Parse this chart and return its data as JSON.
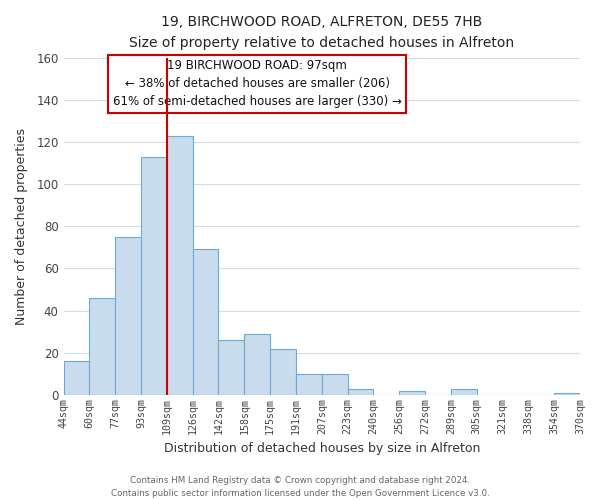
{
  "title": "19, BIRCHWOOD ROAD, ALFRETON, DE55 7HB",
  "subtitle": "Size of property relative to detached houses in Alfreton",
  "xlabel": "Distribution of detached houses by size in Alfreton",
  "ylabel": "Number of detached properties",
  "bar_color": "#c8dcee",
  "bar_edge_color": "#6aaad4",
  "categories": [
    "44sqm",
    "60sqm",
    "77sqm",
    "93sqm",
    "109sqm",
    "126sqm",
    "142sqm",
    "158sqm",
    "175sqm",
    "191sqm",
    "207sqm",
    "223sqm",
    "240sqm",
    "256sqm",
    "272sqm",
    "289sqm",
    "305sqm",
    "321sqm",
    "338sqm",
    "354sqm",
    "370sqm"
  ],
  "values": [
    16,
    46,
    75,
    113,
    123,
    69,
    26,
    29,
    22,
    10,
    10,
    3,
    0,
    2,
    0,
    3,
    0,
    0,
    0,
    1
  ],
  "ylim": [
    0,
    160
  ],
  "yticks": [
    0,
    20,
    40,
    60,
    80,
    100,
    120,
    140,
    160
  ],
  "red_line_x": 4,
  "annotation_title": "19 BIRCHWOOD ROAD: 97sqm",
  "annotation_line1": "← 38% of detached houses are smaller (206)",
  "annotation_line2": "61% of semi-detached houses are larger (330) →",
  "footer1": "Contains HM Land Registry data © Crown copyright and database right 2024.",
  "footer2": "Contains public sector information licensed under the Open Government Licence v3.0.",
  "background_color": "#ffffff",
  "grid_color": "#d0dce8"
}
